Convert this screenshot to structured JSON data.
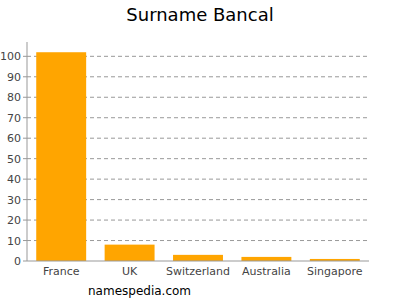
{
  "chart_data": {
    "type": "bar",
    "title": "Surname Bancal",
    "categories": [
      "France",
      "UK",
      "Switzerland",
      "Australia",
      "Singapore"
    ],
    "values": [
      102,
      8,
      3,
      2,
      1
    ],
    "color": "#ffa500",
    "ylim": [
      0,
      107
    ],
    "yticks": [
      0,
      10,
      20,
      30,
      40,
      50,
      60,
      70,
      80,
      90,
      100
    ],
    "grid": true,
    "annotations": [
      "namespedia.com"
    ]
  }
}
